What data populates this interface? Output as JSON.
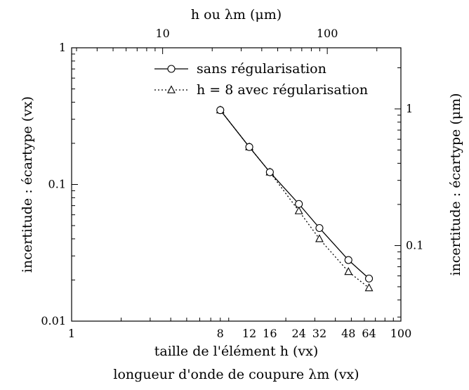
{
  "chart_data": {
    "type": "line",
    "xscale": "log",
    "yscale": "log",
    "xlim": [
      1,
      100
    ],
    "ylim": [
      0.01,
      1
    ],
    "xlabel": "taille de l'élément h (vx)",
    "xlabel2": "longueur d'onde de coupure λm (vx)",
    "ylabel": "incertitude : écartype (vx)",
    "x_ticks": [
      {
        "value": 1,
        "label": "1"
      },
      {
        "value": 8,
        "label": "8"
      },
      {
        "value": 12,
        "label": "12"
      },
      {
        "value": 16,
        "label": "16"
      },
      {
        "value": 24,
        "label": "24"
      },
      {
        "value": 32,
        "label": "32"
      },
      {
        "value": 48,
        "label": "48"
      },
      {
        "value": 64,
        "label": "64"
      },
      {
        "value": 100,
        "label": "100"
      }
    ],
    "y_ticks": [
      {
        "value": 0.01,
        "label": "0.01"
      },
      {
        "value": 0.1,
        "label": "0.1"
      },
      {
        "value": 1,
        "label": "1"
      }
    ],
    "top_axis": {
      "label": "h ou λm (μm)",
      "ticks": [
        {
          "value": 10,
          "label": "10"
        },
        {
          "value": 100,
          "label": "100"
        }
      ],
      "lim": [
        2.8,
        280
      ]
    },
    "right_axis": {
      "label": "incertitude : écartype (μm)",
      "ticks": [
        {
          "value": 0.1,
          "label": "0.1"
        },
        {
          "value": 1,
          "label": "1"
        }
      ],
      "lim": [
        0.028,
        2.8
      ]
    },
    "x": [
      8,
      12,
      16,
      24,
      32,
      48,
      64
    ],
    "series": [
      {
        "name": "sans régularisation",
        "marker": "circle",
        "line": "solid",
        "values": [
          0.35,
          0.188,
          0.123,
          0.072,
          0.048,
          0.028,
          0.0205
        ]
      },
      {
        "name": "h = 8 avec régularisation",
        "marker": "triangle",
        "line": "dotted",
        "values": [
          0.35,
          0.188,
          0.123,
          0.064,
          0.04,
          0.023,
          0.0175
        ]
      }
    ],
    "legend_position": "top-right",
    "grid": false
  }
}
